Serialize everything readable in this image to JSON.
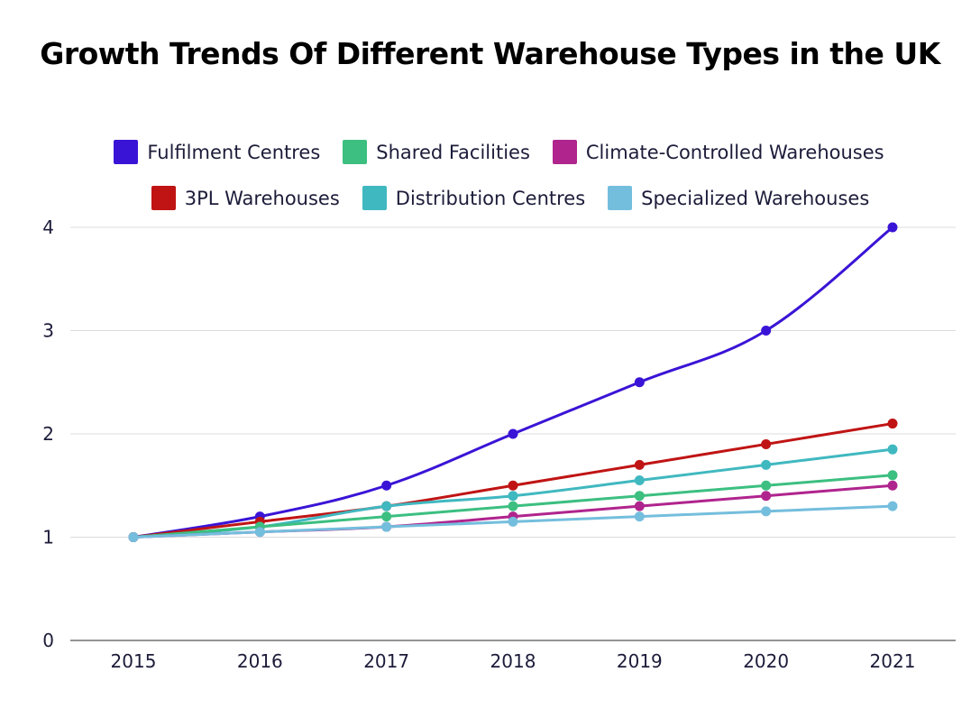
{
  "chart_data": {
    "type": "line",
    "title": "Growth Trends Of Different Warehouse Types in the UK",
    "xlabel": "",
    "ylabel": "",
    "x": [
      "2015",
      "2016",
      "2017",
      "2018",
      "2019",
      "2020",
      "2021"
    ],
    "ylim": [
      0,
      4
    ],
    "yticks": [
      "0",
      "1",
      "2",
      "3",
      "4"
    ],
    "grid": true,
    "legend_position": "top",
    "series": [
      {
        "name": "Fulfilment Centres",
        "color": "#3a14d6",
        "values": [
          1,
          1.2,
          1.5,
          2,
          2.5,
          3,
          4
        ]
      },
      {
        "name": "Shared Facilities",
        "color": "#3cbf80",
        "values": [
          1,
          1.1,
          1.2,
          1.3,
          1.4,
          1.5,
          1.6
        ]
      },
      {
        "name": "Climate-Controlled Warehouses",
        "color": "#b0248e",
        "values": [
          1,
          1.05,
          1.1,
          1.2,
          1.3,
          1.4,
          1.5
        ]
      },
      {
        "name": "3PL Warehouses",
        "color": "#c01414",
        "values": [
          1,
          1.15,
          1.3,
          1.5,
          1.7,
          1.9,
          2.1
        ]
      },
      {
        "name": "Distribution Centres",
        "color": "#40b8c0",
        "values": [
          1,
          1.1,
          1.3,
          1.4,
          1.55,
          1.7,
          1.85
        ]
      },
      {
        "name": "Specialized Warehouses",
        "color": "#74bedd",
        "values": [
          1,
          1.05,
          1.1,
          1.15,
          1.2,
          1.25,
          1.3
        ]
      }
    ]
  }
}
